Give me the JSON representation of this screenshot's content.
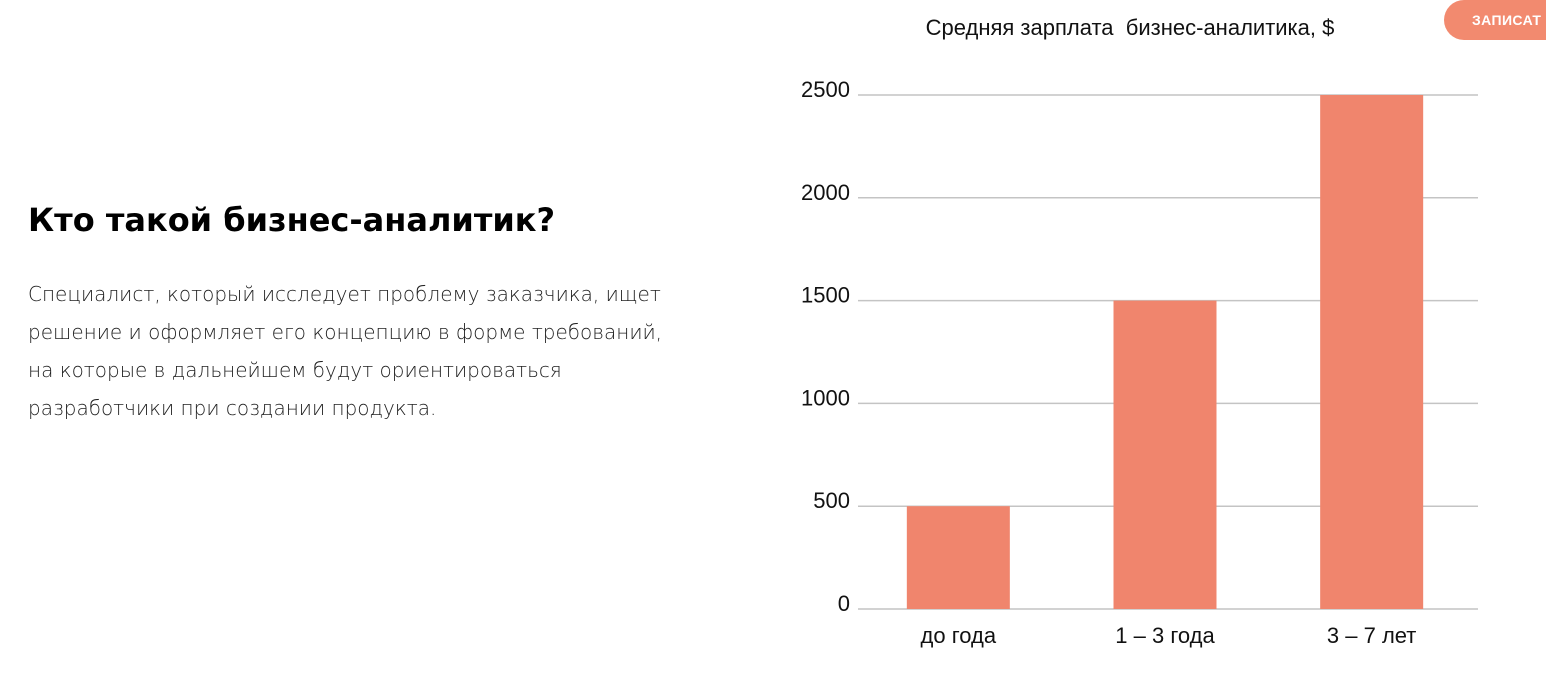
{
  "section": {
    "heading": "Кто такой бизнес-аналитик?",
    "text": "Специалист, который исследует проблему заказчика, ищет решение и оформляет его концепцию в форме требований, на которые в дальнейшем будут ориентироваться разработчики при создании продукта."
  },
  "header": {
    "signup_label": "ЗАПИСАТ",
    "signup_color": "#f28a6f"
  },
  "colors": {
    "bar": "#f0856d"
  },
  "chart_data": {
    "type": "bar",
    "title": "Средняя зарплата  бизнес-аналитика, $",
    "xlabel": "",
    "ylabel": "",
    "categories": [
      "до года",
      "1 – 3 года",
      "3 – 7 лет"
    ],
    "values": [
      500,
      1500,
      2500
    ],
    "ylim": [
      0,
      2500
    ],
    "yticks": [
      "0",
      "500",
      "1000",
      "1500",
      "2000",
      "2500"
    ],
    "grid": true,
    "legend": "none"
  }
}
